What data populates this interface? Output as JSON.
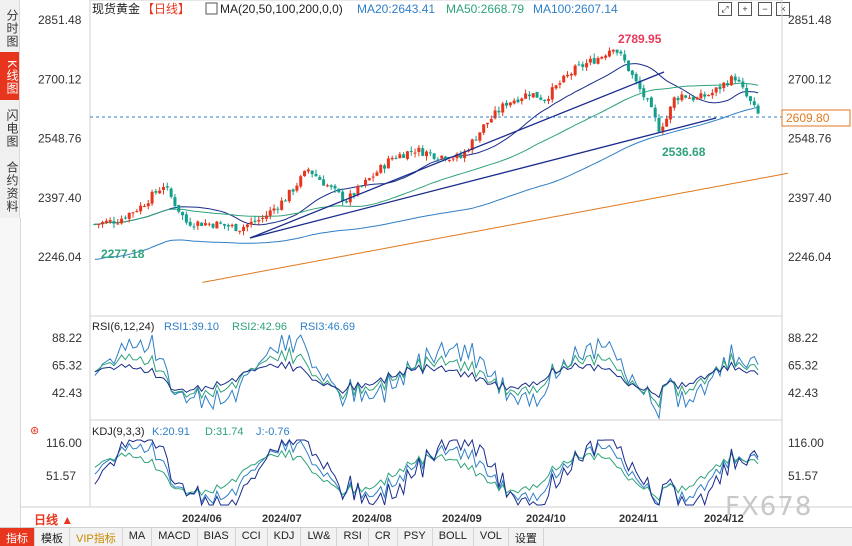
{
  "sidebar": {
    "tabs": [
      {
        "label": "分时图",
        "active": false
      },
      {
        "label": "K线图",
        "active": true
      },
      {
        "label": "闪电图",
        "active": false
      },
      {
        "label": "合约资料",
        "active": false
      }
    ]
  },
  "header": {
    "instrument": "现货黄金",
    "period": "【日线】",
    "ma_label": "MA(20,50,100,200,0,0)",
    "ma20": "MA20:2643.41",
    "ma50": "MA50:2668.79",
    "ma100": "MA100:2607.14",
    "tool_icons": [
      "fullscreen-icon",
      "expand-icon",
      "collapse-icon",
      "close-icon"
    ]
  },
  "period_selector": "日线",
  "toolbar": {
    "items": [
      "指标",
      "模板",
      "VIP指标",
      "MA",
      "MACD",
      "BIAS",
      "CCI",
      "KDJ",
      "LW&",
      "RSI",
      "CR",
      "PSY",
      "BOLL",
      "VOL",
      "设置"
    ]
  },
  "watermark": "FX678",
  "colors": {
    "up": "#e8361e",
    "down": "#13a08a",
    "ma20": "#1a2c8c",
    "ma50": "#2fa37a",
    "ma100": "#2f7fc7",
    "ma200": "#e07a1f",
    "annot_high": "#e83a5c",
    "annot_low": "#2fa37a",
    "price_box": "#e07a1f"
  },
  "chart_data": [
    {
      "type": "candlestick",
      "name": "main",
      "y_axis_ticks": [
        "2851.48",
        "2700.12",
        "2548.76",
        "2397.40",
        "2246.04"
      ],
      "ylim": [
        2150,
        2875
      ],
      "x_axis_ticks": [
        "2024/06",
        "2024/07",
        "2024/08",
        "2024/09",
        "2024/10",
        "2024/11",
        "2024/12"
      ],
      "current_price": "2609.80",
      "annotations": {
        "high": "2789.95",
        "low": "2536.68",
        "start_low": "2277.18"
      },
      "ohlc_series": "daily OHLC candles, ~150 sessions, May–Dec 2024",
      "ma_lines": [
        "MA20",
        "MA50",
        "MA100",
        "MA200"
      ]
    },
    {
      "type": "line",
      "name": "rsi",
      "label": "RSI(6,12,24)",
      "rsi1": "RSI1:39.10",
      "rsi2": "RSI2:42.96",
      "rsi3": "RSI3:46.69",
      "y_axis_ticks": [
        "88.22",
        "65.32",
        "42.43"
      ],
      "ylim": [
        25,
        95
      ]
    },
    {
      "type": "line",
      "name": "kdj",
      "label": "KDJ(9,3,3)",
      "k": "K:20.91",
      "d": "D:31.74",
      "j": "J:-0.76",
      "y_axis_ticks": [
        "116.00",
        "51.57"
      ],
      "ylim": [
        -15,
        130
      ]
    }
  ]
}
